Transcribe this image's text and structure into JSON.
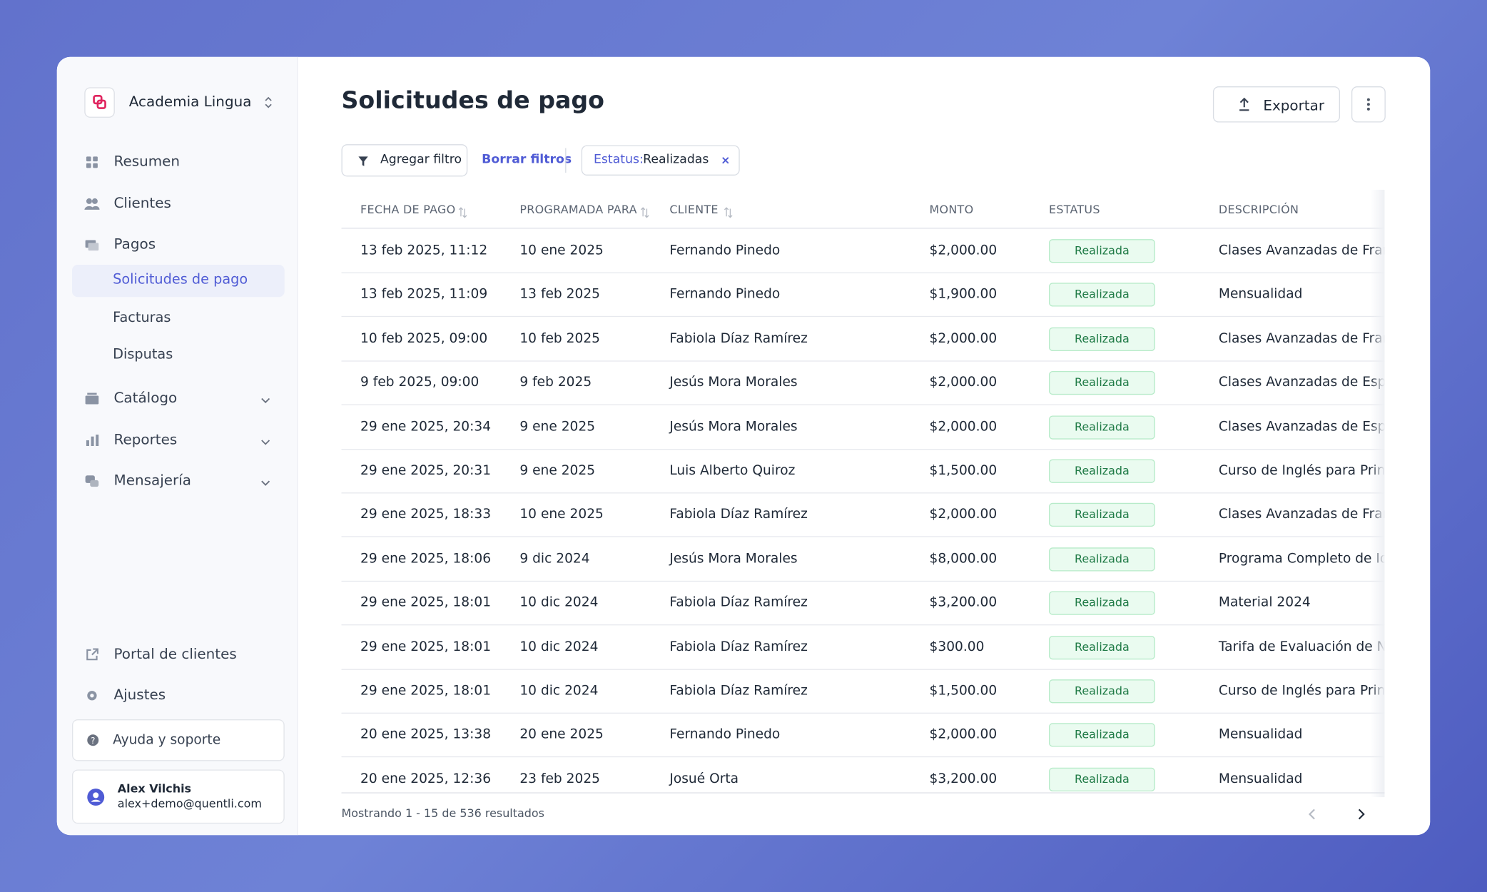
{
  "sidebar": {
    "org": "Academia Lingua",
    "nav": [
      {
        "label": "Resumen"
      },
      {
        "label": "Clientes"
      },
      {
        "label": "Pagos"
      }
    ],
    "subnav": [
      {
        "label": "Solicitudes de pago"
      },
      {
        "label": "Facturas"
      },
      {
        "label": "Disputas"
      }
    ],
    "groups": [
      {
        "label": "Catálogo"
      },
      {
        "label": "Reportes"
      },
      {
        "label": "Mensajería"
      }
    ],
    "bottom": [
      {
        "label": "Portal de clientes"
      },
      {
        "label": "Ajustes"
      }
    ],
    "help": "Ayuda y soporte",
    "user": {
      "name": "Alex Vilchis",
      "email": "alex+demo@quentli.com"
    }
  },
  "header": {
    "title": "Solicitudes de pago",
    "export": "Exportar"
  },
  "filters": {
    "add": "Agregar filtro",
    "clear": "Borrar filtros",
    "chip_key": "Estatus:",
    "chip_value": "Realizadas"
  },
  "table": {
    "columns": [
      "FECHA DE PAGO",
      "PROGRAMADA PARA",
      "CLIENTE",
      "MONTO",
      "ESTATUS",
      "DESCRIPCIÓN"
    ],
    "rows": [
      [
        "13 feb 2025, 11:12",
        "10 ene 2025",
        "Fernando Pinedo",
        "$2,000.00",
        "Realizada",
        "Clases Avanzadas de Franc"
      ],
      [
        "13 feb 2025, 11:09",
        "13 feb 2025",
        "Fernando Pinedo",
        "$1,900.00",
        "Realizada",
        "Mensualidad"
      ],
      [
        "10 feb 2025, 09:00",
        "10 feb 2025",
        "Fabiola Díaz Ramírez",
        "$2,000.00",
        "Realizada",
        "Clases Avanzadas de Franc"
      ],
      [
        "9 feb 2025, 09:00",
        "9 feb 2025",
        "Jesús Mora Morales",
        "$2,000.00",
        "Realizada",
        "Clases Avanzadas de Espa"
      ],
      [
        "29 ene 2025, 20:34",
        "9 ene 2025",
        "Jesús Mora Morales",
        "$2,000.00",
        "Realizada",
        "Clases Avanzadas de Espa"
      ],
      [
        "29 ene 2025, 20:31",
        "9 ene 2025",
        "Luis Alberto Quiroz",
        "$1,500.00",
        "Realizada",
        "Curso de Inglés para Princi"
      ],
      [
        "29 ene 2025, 18:33",
        "10 ene 2025",
        "Fabiola Díaz Ramírez",
        "$2,000.00",
        "Realizada",
        "Clases Avanzadas de Franc"
      ],
      [
        "29 ene 2025, 18:06",
        "9 dic 2024",
        "Jesús Mora Morales",
        "$8,000.00",
        "Realizada",
        "Programa Completo de Idi"
      ],
      [
        "29 ene 2025, 18:01",
        "10 dic 2024",
        "Fabiola Díaz Ramírez",
        "$3,200.00",
        "Realizada",
        "Material 2024"
      ],
      [
        "29 ene 2025, 18:01",
        "10 dic 2024",
        "Fabiola Díaz Ramírez",
        "$300.00",
        "Realizada",
        "Tarifa de Evaluación de Niv"
      ],
      [
        "29 ene 2025, 18:01",
        "10 dic 2024",
        "Fabiola Díaz Ramírez",
        "$1,500.00",
        "Realizada",
        "Curso de Inglés para Princi"
      ],
      [
        "20 ene 2025, 13:38",
        "20 ene 2025",
        "Fernando Pinedo",
        "$2,000.00",
        "Realizada",
        "Mensualidad"
      ],
      [
        "20 ene 2025, 12:36",
        "23 feb 2025",
        "Josué Orta",
        "$3,200.00",
        "Realizada",
        "Mensualidad"
      ]
    ]
  },
  "footer": {
    "summary": "Mostrando 1 - 15 de 536 resultados"
  }
}
